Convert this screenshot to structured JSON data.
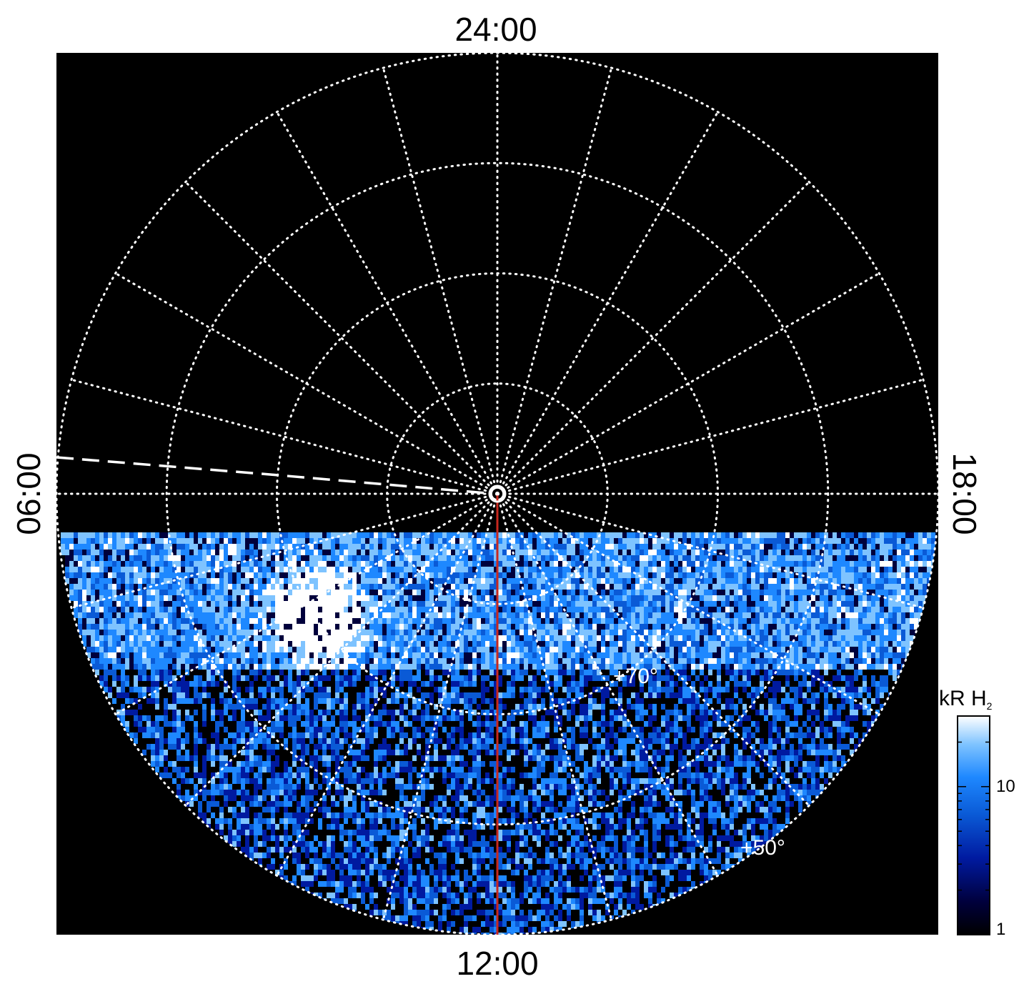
{
  "chart_data": {
    "type": "heatmap",
    "projection": "polar (north pole view, local time vs latitude)",
    "local_time_labels": {
      "top": "24:00",
      "bottom": "12:00",
      "left": "06:00",
      "right": "18:00"
    },
    "latitude_labels": [
      "+70°",
      "+50°"
    ],
    "grid": true,
    "colorbar": {
      "title": "kR H",
      "title_subscript": "2",
      "scale": "log",
      "range": [
        1,
        30
      ],
      "tick_labels": [
        "10",
        "1"
      ],
      "colors": [
        "#000000",
        "#00003c",
        "#001aa0",
        "#0a5ad6",
        "#1e88ff",
        "#7ec3ff",
        "#ffffff"
      ]
    },
    "features": {
      "noon_meridian_color": "#c8281e",
      "background_color": "#000000",
      "grid_color": "#ffffff"
    }
  }
}
